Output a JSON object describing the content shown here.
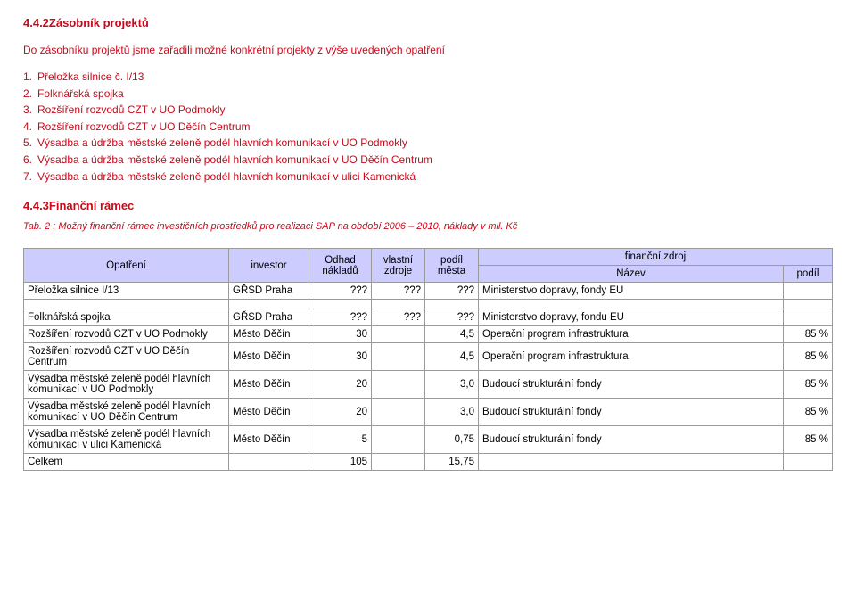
{
  "section": {
    "heading": "4.4.2Zásobník projektů",
    "intro": "Do zásobníku projektů jsme zařadili možné konkrétní projekty z výše uvedených opatření",
    "items": [
      "Přeložka silnice č. I/13",
      "Folknářská spojka",
      "Rozšíření rozvodů CZT v UO Podmokly",
      "Rozšíření rozvodů CZT v UO Děčín Centrum",
      "Výsadba a údržba městské zeleně podél hlavních komunikací v UO Podmokly",
      "Výsadba a údržba městské zeleně podél hlavních komunikací v UO Děčín Centrum",
      "Výsadba a údržba městské zeleně podél hlavních komunikací v ulici Kamenická"
    ],
    "subheading": "4.4.3Finanční rámec",
    "caption": "Tab. 2 : Možný finanční rámec investičních prostředků pro realizaci SAP na období 2006 – 2010, náklady v mil. Kč"
  },
  "table": {
    "headers": {
      "opatreni": "Opatření",
      "investor": "investor",
      "odhad": "Odhad nákladů",
      "vlastni": "vlastní zdroje",
      "podil_mesta": "podíl města",
      "fin_zdroj": "finanční zdroj",
      "nazev": "Název",
      "podil": "podíl"
    },
    "rows": [
      {
        "opatreni": "Přeložka silnice I/13",
        "investor": "GŘSD Praha",
        "odhad": "???",
        "vlastni": "???",
        "podil_mesta": "???",
        "nazev": "Ministerstvo dopravy, fondy EU",
        "podil": ""
      },
      {
        "opatreni": "Folknářská spojka",
        "investor": "GŘSD Praha",
        "odhad": "???",
        "vlastni": "???",
        "podil_mesta": "???",
        "nazev": "Ministerstvo dopravy, fondu EU",
        "podil": ""
      },
      {
        "opatreni": "Rozšíření rozvodů CZT v UO Podmokly",
        "investor": "Město Děčín",
        "odhad": "30",
        "vlastni": "",
        "podil_mesta": "4,5",
        "nazev": "Operační program infrastruktura",
        "podil": "85 %"
      },
      {
        "opatreni": "Rozšíření rozvodů CZT v UO Děčín Centrum",
        "investor": "Město Děčín",
        "odhad": "30",
        "vlastni": "",
        "podil_mesta": "4,5",
        "nazev": "Operační program infrastruktura",
        "podil": "85 %"
      },
      {
        "opatreni": "Výsadba městské zeleně podél hlavních komunikací v UO Podmokly",
        "investor": "Město Děčín",
        "odhad": "20",
        "vlastni": "",
        "podil_mesta": "3,0",
        "nazev": "Budoucí strukturální fondy",
        "podil": "85 %"
      },
      {
        "opatreni": "Výsadba městské zeleně podél hlavních komunikací v UO Děčín Centrum",
        "investor": "Město Děčín",
        "odhad": "20",
        "vlastni": "",
        "podil_mesta": "3,0",
        "nazev": "Budoucí strukturální fondy",
        "podil": "85 %"
      },
      {
        "opatreni": "Výsadba městské zeleně podél hlavních komunikací v ulici Kamenická",
        "investor": "Město Děčín",
        "odhad": "5",
        "vlastni": "",
        "podil_mesta": "0,75",
        "nazev": "Budoucí strukturální fondy",
        "podil": "85 %"
      },
      {
        "opatreni": "Celkem",
        "investor": "",
        "odhad": "105",
        "vlastni": "",
        "podil_mesta": "15,75",
        "nazev": "",
        "podil": ""
      }
    ]
  },
  "colors": {
    "accent": "#c8091a",
    "header_bg": "#ccccff",
    "border": "#9a9a9a",
    "background": "#ffffff"
  }
}
